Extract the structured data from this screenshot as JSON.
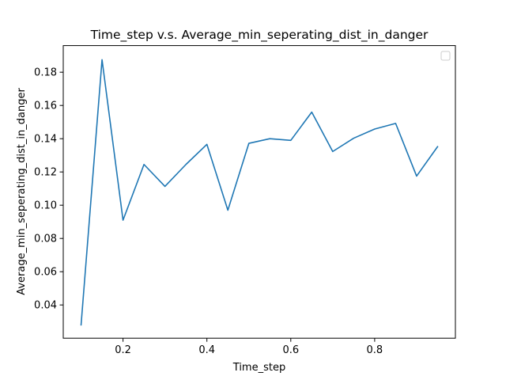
{
  "chart_data": {
    "type": "line",
    "title": "Time_step v.s. Average_min_seperating_dist_in_danger",
    "xlabel": "Time_step",
    "ylabel": "Average_min_seperating_dist_in_danger",
    "xlim": [
      0.0575,
      0.9925
    ],
    "ylim": [
      0.02,
      0.196
    ],
    "xticks": [
      0.2,
      0.4,
      0.6,
      0.8
    ],
    "xtick_labels": [
      "0.2",
      "0.4",
      "0.6",
      "0.8"
    ],
    "yticks": [
      0.04,
      0.06,
      0.08,
      0.1,
      0.12,
      0.14,
      0.16,
      0.18
    ],
    "ytick_labels": [
      "0.04",
      "0.06",
      "0.08",
      "0.10",
      "0.12",
      "0.14",
      "0.16",
      "0.18"
    ],
    "grid": false,
    "legend": "top-right",
    "series": [
      {
        "color": "#1f77b4",
        "x": [
          0.1,
          0.15,
          0.2,
          0.25,
          0.3,
          0.35,
          0.4,
          0.45,
          0.5,
          0.55,
          0.6,
          0.65,
          0.7,
          0.75,
          0.8,
          0.85,
          0.9,
          0.95
        ],
        "values": [
          0.028,
          0.1875,
          0.091,
          0.1245,
          0.1113,
          0.1245,
          0.1366,
          0.097,
          0.1372,
          0.14,
          0.139,
          0.156,
          0.1323,
          0.1403,
          0.1458,
          0.1492,
          0.1175,
          0.1352
        ]
      }
    ]
  }
}
